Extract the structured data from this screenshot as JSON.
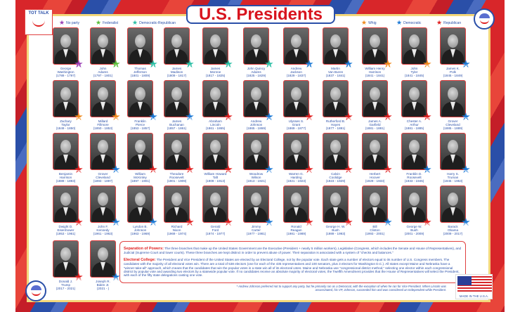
{
  "title": "U.S. Presidents",
  "logo_text": "TOT TALK",
  "flag_text": "MADE IN THE U.S.A.",
  "parties": {
    "none": {
      "label": "No party",
      "color": "#9b3fb5"
    },
    "fed": {
      "label": "Federalist",
      "color": "#5bbf3a"
    },
    "dr": {
      "label": "Democratic-Republican",
      "color": "#2bbfa5"
    },
    "whig": {
      "label": "Whig",
      "color": "#f08a1e"
    },
    "dem": {
      "label": "Democratic",
      "color": "#1e7ad6"
    },
    "rep": {
      "label": "Republican",
      "color": "#e02020"
    }
  },
  "presidents": [
    {
      "n": "1",
      "name": "George\nWashington",
      "years": "(1789 - 1797)",
      "party": "none"
    },
    {
      "n": "2",
      "name": "John\nAdams",
      "years": "(1797 - 1801)",
      "party": "fed"
    },
    {
      "n": "3",
      "name": "Thomas\nJefferson",
      "years": "(1801 - 1809)",
      "party": "dr"
    },
    {
      "n": "4",
      "name": "James\nMadison",
      "years": "(1809 - 1817)",
      "party": "dr"
    },
    {
      "n": "5",
      "name": "James\nMonroe",
      "years": "(1817 - 1825)",
      "party": "dr"
    },
    {
      "n": "6",
      "name": "John Quincy\nAdams",
      "years": "(1825 - 1829)",
      "party": "dr"
    },
    {
      "n": "7",
      "name": "Andrew\nJackson",
      "years": "(1829 - 1837)",
      "party": "dem"
    },
    {
      "n": "8",
      "name": "Martin\nVan Buren",
      "years": "(1837 - 1841)",
      "party": "dem"
    },
    {
      "n": "9",
      "name": "William Henry\nHarrison",
      "years": "(1841 - 1841)",
      "party": "whig"
    },
    {
      "n": "10",
      "name": "John\nTyler",
      "years": "(1841 - 1845)",
      "party": "whig"
    },
    {
      "n": "11",
      "name": "James K.\nPolk",
      "years": "(1845 - 1849)",
      "party": "dem"
    },
    {
      "n": "12",
      "name": "Zachary\nTaylor",
      "years": "(1849 - 1850)",
      "party": "whig"
    },
    {
      "n": "13",
      "name": "Millard\nFillmore",
      "years": "(1850 - 1853)",
      "party": "whig"
    },
    {
      "n": "14",
      "name": "Franklin\nPierce",
      "years": "(1853 - 1857)",
      "party": "dem"
    },
    {
      "n": "15",
      "name": "James\nBuchanan",
      "years": "(1857 - 1861)",
      "party": "dem"
    },
    {
      "n": "16",
      "name": "Abraham\nLincoln",
      "years": "(1861 - 1865)",
      "party": "rep"
    },
    {
      "n": "17",
      "name": "Andrew\nJohnson",
      "years": "(1865 - 1869)",
      "party": "dem"
    },
    {
      "n": "18",
      "name": "Ulysses S.\nGrant",
      "years": "(1869 - 1877)",
      "party": "rep"
    },
    {
      "n": "19",
      "name": "Rutherford B.\nHayes",
      "years": "(1877 - 1881)",
      "party": "rep"
    },
    {
      "n": "20",
      "name": "James A.\nGarfield",
      "years": "(1881 - 1881)",
      "party": "rep"
    },
    {
      "n": "21",
      "name": "Chester A.\nArthur",
      "years": "(1881 - 1885)",
      "party": "rep"
    },
    {
      "n": "22",
      "name": "Grover\nCleveland",
      "years": "(1885 - 1889)",
      "party": "dem"
    },
    {
      "n": "23",
      "name": "Benjamin\nHarrison",
      "years": "(1889 - 1893)",
      "party": "rep"
    },
    {
      "n": "24",
      "name": "Grover\nCleveland",
      "years": "(1893 - 1897)",
      "party": "dem"
    },
    {
      "n": "25",
      "name": "William\nMcKinley",
      "years": "(1897 - 1901)",
      "party": "rep"
    },
    {
      "n": "26",
      "name": "Theodore\nRoosevelt",
      "years": "(1901 - 1909)",
      "party": "rep"
    },
    {
      "n": "27",
      "name": "William Howard\nTaft",
      "years": "(1909 - 1913)",
      "party": "rep"
    },
    {
      "n": "28",
      "name": "Woodrow\nWilson",
      "years": "(1913 - 1921)",
      "party": "dem"
    },
    {
      "n": "29",
      "name": "Warren G.\nHarding",
      "years": "(1921 - 1923)",
      "party": "rep"
    },
    {
      "n": "30",
      "name": "Calvin\nCoolidge",
      "years": "(1923 - 1929)",
      "party": "rep"
    },
    {
      "n": "31",
      "name": "Herbert\nHoover",
      "years": "(1929 - 1933)",
      "party": "rep"
    },
    {
      "n": "32",
      "name": "Franklin D.\nRoosevelt",
      "years": "(1933 - 1945)",
      "party": "dem"
    },
    {
      "n": "33",
      "name": "Harry S.\nTruman",
      "years": "(1945 - 1953)",
      "party": "dem"
    },
    {
      "n": "34",
      "name": "Dwight D.\nEisenhower",
      "years": "(1953 - 1961)",
      "party": "rep"
    },
    {
      "n": "35",
      "name": "John F.\nKennedy",
      "years": "(1961 - 1963)",
      "party": "dem"
    },
    {
      "n": "36",
      "name": "Lyndon B.\nJohnson",
      "years": "(1963 - 1969)",
      "party": "dem"
    },
    {
      "n": "37",
      "name": "Richard\nNixon",
      "years": "(1969 - 1974)",
      "party": "rep"
    },
    {
      "n": "38",
      "name": "Gerald\nFord",
      "years": "(1974 - 1977)",
      "party": "rep"
    },
    {
      "n": "39",
      "name": "Jimmy\nCarter",
      "years": "(1977 - 1981)",
      "party": "dem"
    },
    {
      "n": "40",
      "name": "Ronald\nReagan",
      "years": "(1981 - 1989)",
      "party": "rep"
    },
    {
      "n": "41",
      "name": "George H. W.\nBush",
      "years": "(1989 - 1993)",
      "party": "rep"
    },
    {
      "n": "42",
      "name": "Bill\nClinton",
      "years": "(1993 - 2001)",
      "party": "dem"
    },
    {
      "n": "43",
      "name": "George W.\nBush",
      "years": "(2001 - 2009)",
      "party": "rep"
    },
    {
      "n": "44",
      "name": "Barack\nObama",
      "years": "(2009 - 2017)",
      "party": "dem"
    },
    {
      "n": "45",
      "name": "Donald J.\nTrump",
      "years": "(2017 - 2021)",
      "party": "rep"
    },
    {
      "n": "46",
      "name": "Joseph R.\nBiden Jr.",
      "years": "(2021 - )",
      "party": "dem"
    }
  ],
  "info": {
    "separation_heading": "Separation of Powers:",
    "separation_text": " The three branches that make up the United States Government are the Executive (President + nearly 5 million workers), Legislative (Congress, which includes the Senate and House of Representatives), and Judicial (Supreme Court and lower courts). These three branches are kept distinct in order to prevent abuse of power. Their separation is associated with a system of “checks and balances.”",
    "electoral_heading": "Electoral College:",
    "electoral_text": " The President and Vice President of the United States are elected by an Electoral College, not by the popular vote. Each state gets a number of electors equal to its number of U.S. Congress members. The candidates with the majority of all electoral votes win. There are a total of 538 electors (one for each of the 435 representatives and 100 senators, plus 3 electors for Washington D.C.). All states except Maine and Nebraska have a “winner-take-all” approach, which means that the candidates that win the popular votes in a state win all of its electoral votes. Maine and Nebraska use “congressional district method,” selecting one elector within each congressional district by popular vote and awarding two electors by a statewide popular vote. If no candidates receive an absolute majority of electoral votes, the Twelfth Amendment provides that the House of Representatives will select the President, with each of the fifty state delegations casting one vote."
  },
  "footnote": "* Andrew Johnson preferred not to support any party, but he primarily ran as a Democrat, with the exception of when he ran for Vice President. When Lincoln was assassinated, his VP, Johnson, succeeded him and was considered an Independent while President."
}
